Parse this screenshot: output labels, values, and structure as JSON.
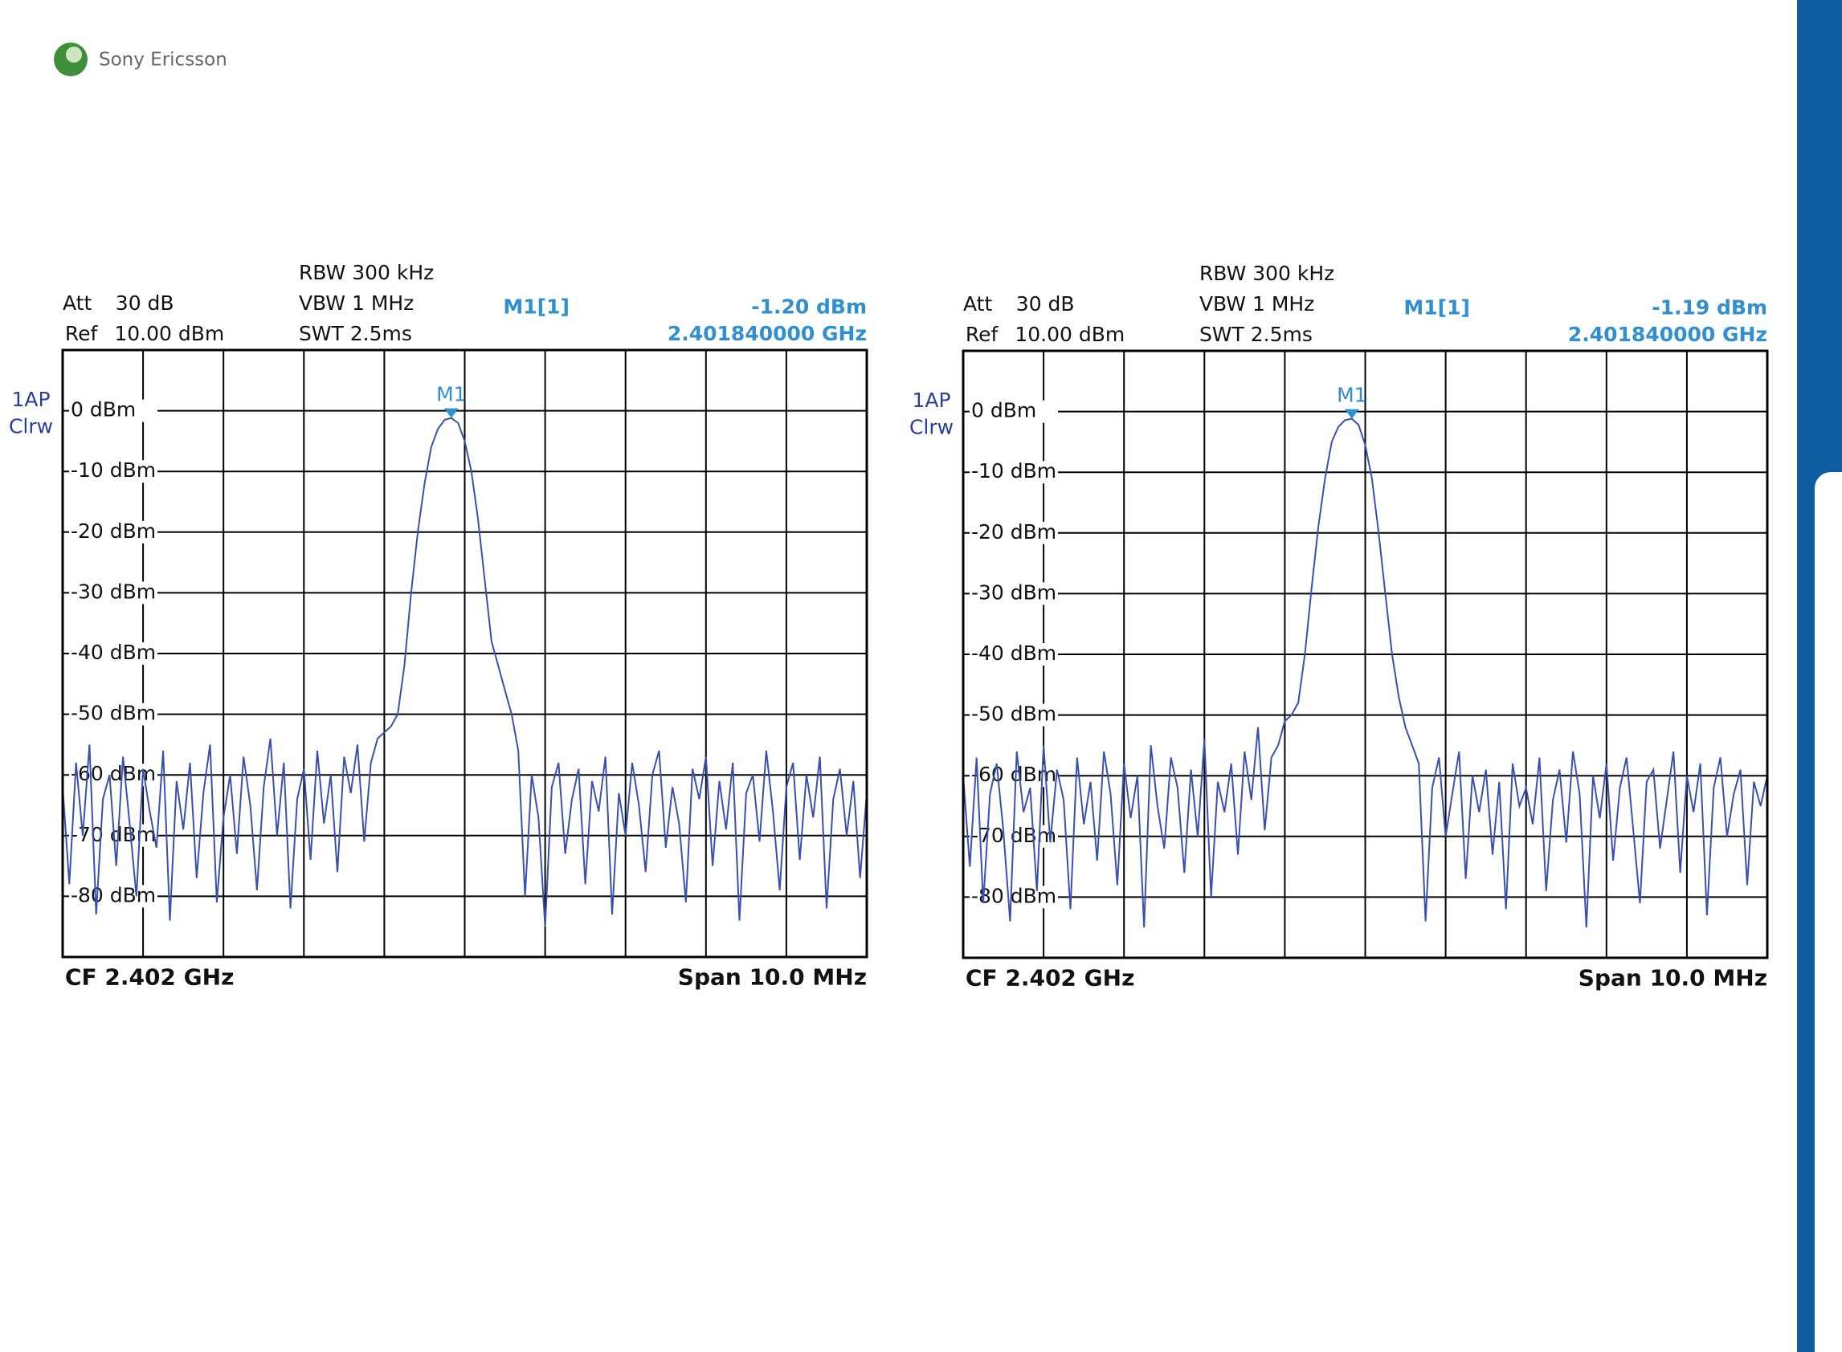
{
  "logo": "Sony Ericsson",
  "chart_data": [
    {
      "type": "line",
      "rbw": "RBW 300 kHz",
      "att_label": "Att",
      "att": "30 dB",
      "vbw": "VBW 1 MHz",
      "ref_label": "Ref",
      "ref": "10.00 dBm",
      "swt": "SWT 2.5ms",
      "trace_label": [
        "1AP",
        "Clrw"
      ],
      "marker": {
        "name": "M1[1]",
        "label": "M1",
        "value": -1.2,
        "value_label": "-1.20 dBm",
        "frequency": "2.401840000 GHz"
      },
      "center": "CF 2.402 GHz",
      "span": "Span 10.0 MHz",
      "color": "#3a50b0",
      "marker_color": "#2f8fd0",
      "grid": true,
      "ylim": [
        -90,
        10
      ],
      "yticks": [
        {
          "value": 0,
          "label": "0 dBm"
        },
        {
          "value": -10,
          "label": "-10 dBm"
        },
        {
          "value": -20,
          "label": "-20 dBm"
        },
        {
          "value": -30,
          "label": "-30 dBm"
        },
        {
          "value": -40,
          "label": "-40 dBm"
        },
        {
          "value": -50,
          "label": "-50 dBm"
        },
        {
          "value": -60,
          "label": "-60 dBm"
        },
        {
          "value": -70,
          "label": "-70 dBm"
        },
        {
          "value": -80,
          "label": "-80 dBm"
        }
      ],
      "values": [
        -62,
        -78,
        -58,
        -70,
        -55,
        -83,
        -64,
        -60,
        -75,
        -57,
        -68,
        -80,
        -59,
        -66,
        -72,
        -56,
        -84,
        -61,
        -69,
        -58,
        -77,
        -63,
        -55,
        -81,
        -67,
        -60,
        -73,
        -57,
        -65,
        -79,
        -62,
        -54,
        -70,
        -58,
        -82,
        -64,
        -59,
        -74,
        -56,
        -68,
        -60,
        -76,
        -57,
        -63,
        -55,
        -71,
        -58,
        -54,
        -53,
        -52,
        -50,
        -42,
        -30,
        -20,
        -12,
        -6,
        -3,
        -1.5,
        -1.2,
        -2,
        -5,
        -10,
        -18,
        -28,
        -38,
        -42,
        -46,
        -50,
        -56,
        -80,
        -60,
        -67,
        -85,
        -62,
        -58,
        -73,
        -64,
        -59,
        -78,
        -61,
        -66,
        -57,
        -83,
        -63,
        -70,
        -58,
        -65,
        -76,
        -60,
        -56,
        -72,
        -62,
        -68,
        -81,
        -59,
        -64,
        -57,
        -75,
        -61,
        -69,
        -58,
        -84,
        -63,
        -60,
        -71,
        -56,
        -66,
        -79,
        -62,
        -58,
        -74,
        -60,
        -67,
        -57,
        -82,
        -64,
        -59,
        -70,
        -61,
        -77,
        -63
      ]
    },
    {
      "type": "line",
      "rbw": "RBW 300 kHz",
      "att_label": "Att",
      "att": "30 dB",
      "vbw": "VBW 1 MHz",
      "ref_label": "Ref",
      "ref": "10.00 dBm",
      "swt": "SWT 2.5ms",
      "trace_label": [
        "1AP",
        "Clrw"
      ],
      "marker": {
        "name": "M1[1]",
        "label": "M1",
        "value": -1.19,
        "value_label": "-1.19 dBm",
        "frequency": "2.401840000 GHz"
      },
      "center": "CF 2.402 GHz",
      "span": "Span 10.0 MHz",
      "color": "#3a50b0",
      "marker_color": "#2f8fd0",
      "grid": true,
      "ylim": [
        -90,
        10
      ],
      "yticks": [
        {
          "value": 0,
          "label": "0 dBm"
        },
        {
          "value": -10,
          "label": "-10 dBm"
        },
        {
          "value": -20,
          "label": "-20 dBm"
        },
        {
          "value": -30,
          "label": "-30 dBm"
        },
        {
          "value": -40,
          "label": "-40 dBm"
        },
        {
          "value": -50,
          "label": "-50 dBm"
        },
        {
          "value": -60,
          "label": "-60 dBm"
        },
        {
          "value": -70,
          "label": "-70 dBm"
        },
        {
          "value": -80,
          "label": "-80 dBm"
        }
      ],
      "values": [
        -60,
        -75,
        -57,
        -81,
        -63,
        -58,
        -69,
        -84,
        -56,
        -66,
        -62,
        -79,
        -55,
        -71,
        -59,
        -64,
        -82,
        -57,
        -68,
        -61,
        -74,
        -56,
        -63,
        -78,
        -58,
        -67,
        -60,
        -85,
        -55,
        -65,
        -72,
        -57,
        -62,
        -76,
        -59,
        -70,
        -54,
        -80,
        -61,
        -66,
        -58,
        -73,
        -56,
        -64,
        -52,
        -69,
        -57,
        -55,
        -51,
        -50,
        -48,
        -40,
        -29,
        -19,
        -11,
        -5,
        -2.5,
        -1.4,
        -1.19,
        -2.2,
        -5.5,
        -11,
        -20,
        -30,
        -40,
        -47,
        -52,
        -55,
        -58,
        -84,
        -62,
        -57,
        -70,
        -63,
        -56,
        -77,
        -60,
        -66,
        -59,
        -73,
        -61,
        -82,
        -58,
        -65,
        -62,
        -68,
        -57,
        -79,
        -64,
        -59,
        -71,
        -56,
        -63,
        -85,
        -60,
        -67,
        -58,
        -74,
        -62,
        -57,
        -69,
        -81,
        -61,
        -59,
        -72,
        -64,
        -56,
        -76,
        -60,
        -66,
        -58,
        -83,
        -62,
        -57,
        -70,
        -63,
        -59,
        -78,
        -61,
        -65,
        -60
      ]
    }
  ]
}
